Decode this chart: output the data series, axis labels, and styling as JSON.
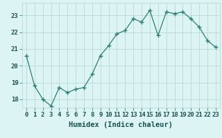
{
  "x": [
    0,
    1,
    2,
    3,
    4,
    5,
    6,
    7,
    8,
    9,
    10,
    11,
    12,
    13,
    14,
    15,
    16,
    17,
    18,
    19,
    20,
    21,
    22,
    23
  ],
  "y": [
    20.6,
    18.8,
    18.0,
    17.6,
    18.7,
    18.4,
    18.6,
    18.7,
    19.5,
    20.6,
    21.2,
    21.9,
    22.1,
    22.8,
    22.6,
    23.3,
    21.8,
    23.2,
    23.1,
    23.2,
    22.8,
    22.3,
    21.5,
    21.1
  ],
  "line_color": "#2e7d72",
  "marker": "+",
  "marker_size": 4,
  "bg_color": "#ddf4f4",
  "grid_color": "#b8d8d8",
  "xlabel": "Humidex (Indice chaleur)",
  "ylim": [
    17.5,
    23.75
  ],
  "yticks": [
    18,
    19,
    20,
    21,
    22,
    23
  ],
  "xticks": [
    0,
    1,
    2,
    3,
    4,
    5,
    6,
    7,
    8,
    9,
    10,
    11,
    12,
    13,
    14,
    15,
    16,
    17,
    18,
    19,
    20,
    21,
    22,
    23
  ],
  "tick_fontsize": 6.5,
  "xlabel_fontsize": 7.5,
  "ylabel_fontsize": 7
}
